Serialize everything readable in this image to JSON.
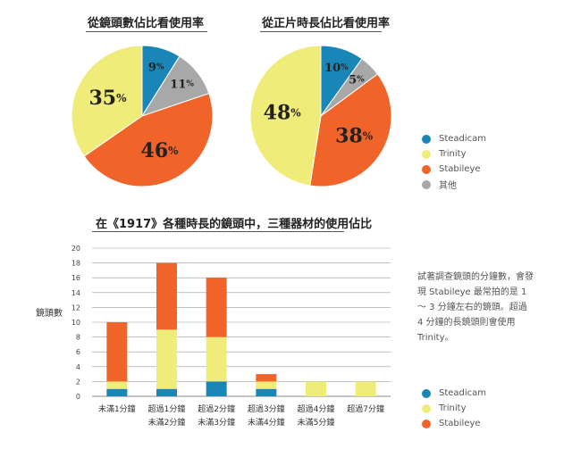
{
  "colors": {
    "Steadicam": "#1a86b8",
    "Trinity": "#f0ec7a",
    "Stabileye": "#f0642a",
    "Other": "#a8a8a8"
  },
  "pie1": {
    "title": "從鏡頭數佔比看使用率",
    "chart_data": {
      "type": "pie",
      "title": "從鏡頭數佔比看使用率",
      "labels": [
        "Steadicam",
        "Other",
        "Stabileye",
        "Trinity"
      ],
      "display_labels": [
        "9",
        "11",
        "46",
        "35"
      ],
      "values": [
        9,
        11,
        46,
        35
      ]
    }
  },
  "pie2": {
    "title": "從正片時長佔比看使用率",
    "chart_data": {
      "type": "pie",
      "title": "從正片時長佔比看使用率",
      "labels": [
        "Steadicam",
        "Other",
        "Stabileye",
        "Trinity"
      ],
      "display_labels": [
        "10",
        "5",
        "38",
        "48"
      ],
      "values": [
        10,
        5,
        38,
        48
      ]
    }
  },
  "pie_legend": [
    {
      "label": "Steadicam",
      "key": "Steadicam"
    },
    {
      "label": "Trinity",
      "key": "Trinity"
    },
    {
      "label": "Stabileye",
      "key": "Stabileye"
    },
    {
      "label": "其他",
      "key": "Other"
    }
  ],
  "bar": {
    "title": "在《1917》各種時長的鏡頭中，三種器材的使用佔比",
    "ylabel": "鏡頭數",
    "chart_data": {
      "type": "bar",
      "stacked": true,
      "categories": [
        [
          "未滿1分鐘"
        ],
        [
          "超過1分鐘",
          "未滿2分鐘"
        ],
        [
          "超過2分鐘",
          "未滿3分鐘"
        ],
        [
          "超過3分鐘",
          "未滿4分鐘"
        ],
        [
          "超過4分鐘",
          "未滿5分鐘"
        ],
        [
          "超過7分鐘"
        ]
      ],
      "series": [
        {
          "name": "Steadicam",
          "values": [
            1,
            1,
            2,
            1,
            0,
            0
          ]
        },
        {
          "name": "Trinity",
          "values": [
            1,
            8,
            6,
            1,
            2,
            2
          ]
        },
        {
          "name": "Stabileye",
          "values": [
            8,
            9,
            8,
            1,
            0,
            0
          ]
        }
      ],
      "yticks": [
        0,
        2,
        4,
        6,
        8,
        10,
        12,
        14,
        16,
        18,
        20
      ],
      "ylim": [
        0,
        20
      ],
      "grid": true
    }
  },
  "bar_legend": [
    {
      "label": "Steadicam",
      "key": "Steadicam"
    },
    {
      "label": "Trinity",
      "key": "Trinity"
    },
    {
      "label": "Stabileye",
      "key": "Stabileye"
    }
  ],
  "annotation": "試著調查鏡頭的分鐘數，會發現 Stabileye 最常拍的是 1 ～ 3 分鐘左右的鏡頭。超過 4 分鐘的長鏡頭則會使用 Trinity。"
}
